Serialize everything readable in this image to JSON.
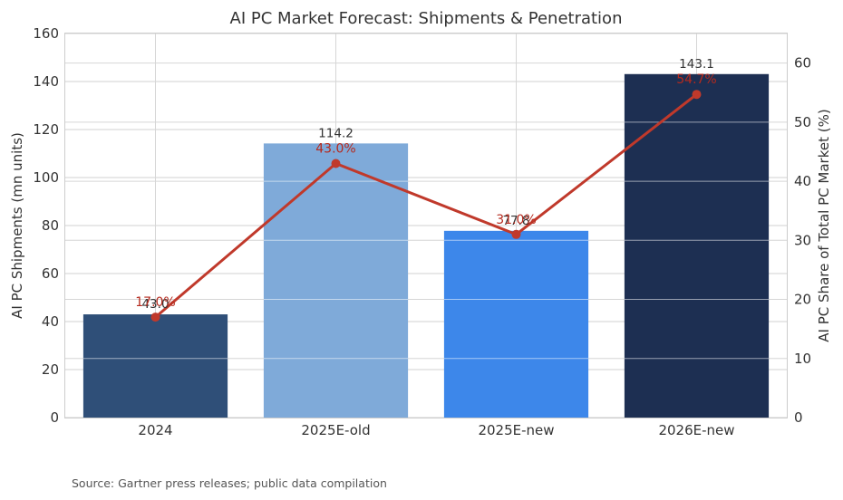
{
  "chart_data": {
    "type": "bar",
    "title": "AI PC Market Forecast: Shipments & Penetration",
    "categories": [
      "2024",
      "2025E-old",
      "2025E-new",
      "2026E-new"
    ],
    "ylabel": "AI PC Shipments (mn units)",
    "y2label": "AI PC Share of Total PC Market (%)",
    "ylim": [
      0,
      160
    ],
    "y2lim": [
      0,
      65
    ],
    "yticks": [
      0,
      20,
      40,
      60,
      80,
      100,
      120,
      140,
      160
    ],
    "y2ticks": [
      0,
      10,
      20,
      30,
      40,
      50,
      60
    ],
    "grid": true,
    "series": [
      {
        "type": "bar",
        "values": [
          43.0,
          114.2,
          77.8,
          143.1
        ],
        "labels": [
          "43.0",
          "114.2",
          "77.8",
          "143.1"
        ],
        "colors": [
          "#2f4f78",
          "#7faad9",
          "#3d87ea",
          "#1d2f52"
        ]
      },
      {
        "type": "line",
        "axis": "right",
        "values": [
          17.0,
          43.0,
          31.0,
          54.7
        ],
        "labels": [
          "17.0%",
          "43.0%",
          "31.0%",
          "54.7%"
        ],
        "color": "#c0392b"
      }
    ]
  },
  "source": "Source: Gartner press releases; public data compilation"
}
